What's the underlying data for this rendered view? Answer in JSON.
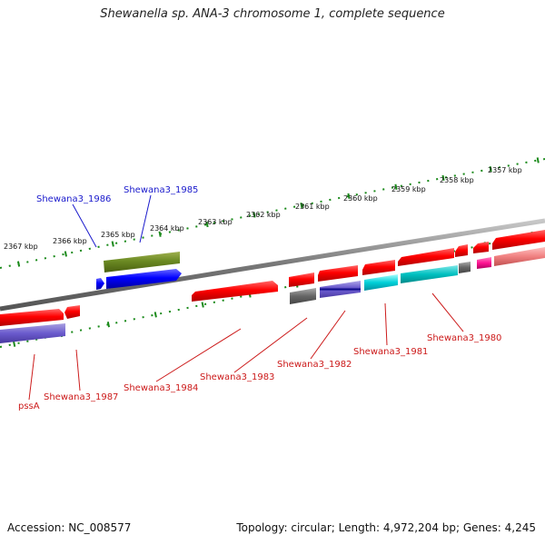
{
  "title": "Shewanella sp. ANA-3 chromosome 1, complete sequence",
  "footer": {
    "accession": "Accession: NC_008577",
    "summary": "Topology: circular; Length: 4,972,204 bp; Genes: 4,245"
  },
  "colors": {
    "backbone": "#8a8a8a",
    "scale_ticks": "#1a8a1a",
    "label_forward": "#1a1acc",
    "label_reverse": "#cc1a1a"
  },
  "tick_labels": [
    "2357 kbp",
    "2358 kbp",
    "2359 kbp",
    "2360 kbp",
    "2361 kbp",
    "2362 kbp",
    "2363 kbp",
    "2364 kbp",
    "2365 kbp",
    "2366 kbp",
    "2367 kbp"
  ],
  "gene_labels": [
    {
      "name": "Shewana3_1986",
      "color": "#1a1acc"
    },
    {
      "name": "Shewana3_1985",
      "color": "#1a1acc"
    },
    {
      "name": "pssA",
      "color": "#cc1a1a"
    },
    {
      "name": "Shewana3_1987",
      "color": "#cc1a1a"
    },
    {
      "name": "Shewana3_1984",
      "color": "#cc1a1a"
    },
    {
      "name": "Shewana3_1983",
      "color": "#cc1a1a"
    },
    {
      "name": "Shewana3_1982",
      "color": "#cc1a1a"
    },
    {
      "name": "Shewana3_1981",
      "color": "#cc1a1a"
    },
    {
      "name": "Shewana3_1980",
      "color": "#cc1a1a"
    }
  ]
}
